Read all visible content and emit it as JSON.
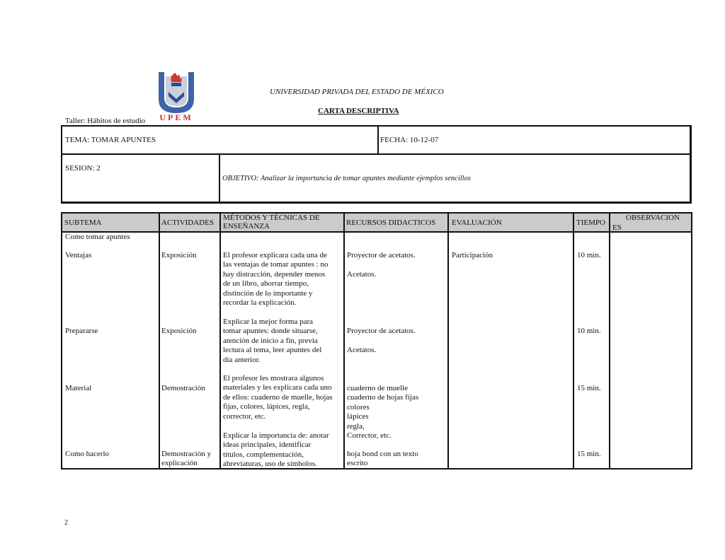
{
  "header": {
    "university": "UNIVERSIDAD PRIVADA DEL ESTADO DE MÉXICO",
    "doc_title": "CARTA DESCRIPTIVA",
    "taller": "Taller: Hábitos de estudio",
    "logo_text": "UPEM"
  },
  "info": {
    "tema": "TEMA:  TOMAR APUNTES",
    "fecha": "FECHA: 10-12-07",
    "sesion": "SESION: 2",
    "objetivo": "OBJETIVO: Analizar la importancia de tomar apuntes mediante ejemplos sencillos"
  },
  "table": {
    "columns": [
      "SUBTEMA",
      "ACTIVIDADES",
      "MÉTODOS Y TÉCNICAS DE\nENSEÑANZA",
      "RECURSOS DIDACTICOS",
      "EVALUACIÓN",
      "TIEMPO",
      "OBSERVACION",
      "ES"
    ],
    "subtema": [
      "Como tomar apuntes",
      "Ventajas",
      "Prepararse",
      "Material",
      "Como hacerlo"
    ],
    "actividades": [
      "Exposición",
      "Exposición",
      "Demostración",
      "Demostración y\nexplicación"
    ],
    "metodos": [
      "El profesor explicara cada una de\nlas ventajas de tomar apuntes : no\nhay distracción, depender menos\nde un libro, ahorrar tiempo,\ndistinción de lo importante y\nrecordar la explicación.",
      "Explicar la mejor forma para\ntomar apuntes: donde situarse,\natención de inicio a fin, previa\nlectura al tema, leer apuntes del\ndía anterior.",
      "El profesor les mostrara algunos\nmateriales y les explicara cada uno\nde ellos: cuaderno de muelle, hojas\nfijas, colores, lápices, regla,\ncorrector, etc.",
      "Explicar la importancia de: anotar\nideas principales, identificar\ntítulos, complementación,\nabreviaturas, uso de símbolos."
    ],
    "recursos": [
      "Proyector de acetatos.\n\nAcetatos.",
      "Proyector de acetatos.\n\nAcetatos.",
      "cuaderno de muelle\ncuaderno de hojas fijas\ncolores\nlápices\n regla,\nCorrector, etc.",
      "hoja bond con un texto\nescrito"
    ],
    "evaluacion": [
      "Participación"
    ],
    "tiempo": [
      "10 min.",
      "10 min.",
      "15 min.",
      "15 min."
    ]
  },
  "footer": {
    "page_number": "2"
  }
}
